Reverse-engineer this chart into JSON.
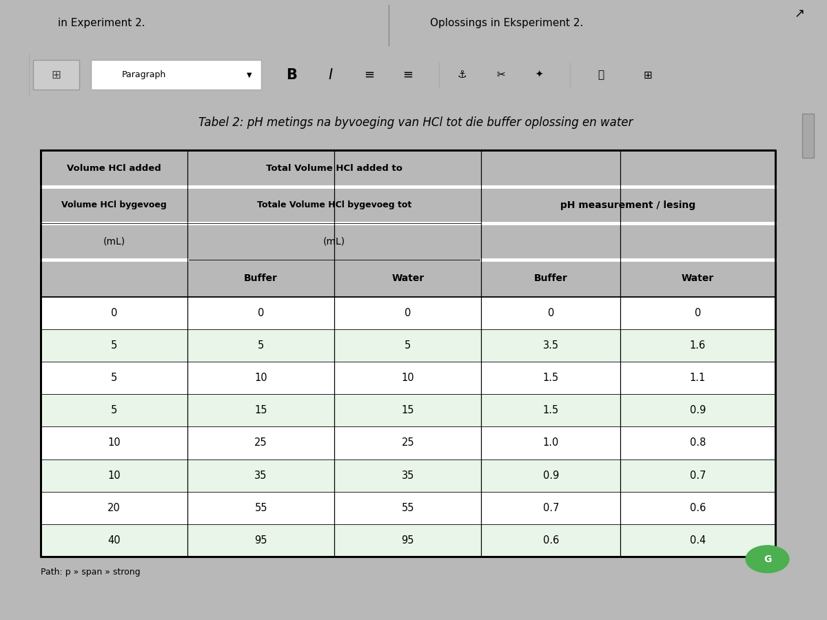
{
  "title": "Tabel 2: pH metings na byvoeging van HCl tot die buffer oplossing en water",
  "header_row1_col1": "Volume HCl added",
  "header_row1_col2": "Total Volume HCl added to",
  "header_row1_col3": "pH measurement / lesing",
  "header_row2_col1": "Volume HCl bygevoeg",
  "header_row2_col2": "Totale Volume HCl bygevoeg tot",
  "header_unit_col1": "(mL)",
  "header_unit_col2": "(mL)",
  "sub_header": [
    "Buffer",
    "Water",
    "Buffer",
    "Water"
  ],
  "volume_hcl_added": [
    "0",
    "5",
    "5",
    "5",
    "10",
    "10",
    "20",
    "40"
  ],
  "total_buffer": [
    "0",
    "5",
    "10",
    "15",
    "25",
    "35",
    "55",
    "95"
  ],
  "total_water": [
    "0",
    "5",
    "10",
    "15",
    "25",
    "35",
    "55",
    "95"
  ],
  "ph_buffer": [
    "0",
    "3.5",
    "1.5",
    "1.5",
    "1.0",
    "0.9",
    "0.7",
    "0.6"
  ],
  "ph_water": [
    "0",
    "1.6",
    "1.1",
    "0.9",
    "0.8",
    "0.7",
    "0.6",
    "0.4"
  ],
  "bg_color": "#b8b8b8",
  "table_bg": "#ffffff",
  "toolbar_bg": "#e8e8e8",
  "top_bar_bg": "#a8b8cc",
  "alt_row_bg": "#e8f5e8",
  "border_color": "#000000",
  "text_color": "#000000",
  "bottom_text": "Path: p » span » strong"
}
